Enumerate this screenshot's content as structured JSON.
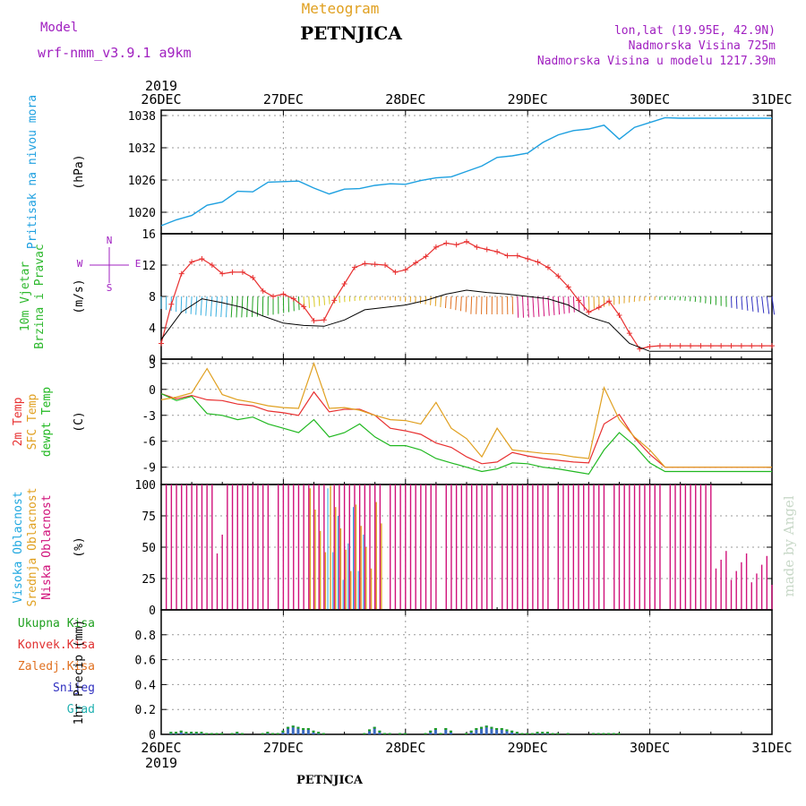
{
  "header": {
    "model_label": "Model",
    "model_name": "wrf-nmm_v3.9.1  a9km",
    "meteogram_label": "Meteogram",
    "station": "PETNJICA",
    "lonlat": "lon,lat (19.95E, 42.9N)",
    "elevation": "Nadmorska Visina 725m",
    "model_elevation": "Nadmorska Visina u modelu 1217.39m",
    "footer_station": "PETNJICA",
    "made_by": "made by Angel"
  },
  "colors": {
    "pressure": "#1ea0e0",
    "wind_label": "#2db82d",
    "wind_speed": "#e83030",
    "temp2m": "#e83030",
    "sfc": "#e0a020",
    "dewpt": "#20b820",
    "visoka": "#20a8e0",
    "srednja": "#e0a020",
    "niska": "#d0107a",
    "ukupna": "#20a020",
    "konvek": "#e03030",
    "zaledj": "#e07020",
    "snijeg": "#3030c0",
    "grad": "#20b0b0",
    "compass": "#a020c0"
  },
  "x_axis": {
    "top_year": "2019",
    "bottom_year": "2019",
    "ticks": [
      "26DEC",
      "27DEC",
      "28DEC",
      "29DEC",
      "30DEC",
      "31DEC"
    ]
  },
  "compass": {
    "n": "N",
    "s": "S",
    "e": "E",
    "w": "W"
  },
  "chart_data": [
    {
      "type": "line",
      "ylabel_lines": [
        "Pritisak na nivou mora"
      ],
      "unit": "(hPa)",
      "ylim": [
        1016,
        1039
      ],
      "yticks": [
        "1038",
        "1032",
        "1026",
        "1020"
      ],
      "series": [
        {
          "x": [
            0,
            3,
            6,
            9,
            12,
            15,
            18,
            21,
            24,
            27,
            30,
            33,
            36,
            39,
            42,
            45,
            48,
            51,
            54,
            57,
            60,
            63,
            66,
            69,
            72,
            75,
            78,
            81,
            84,
            87,
            90,
            93,
            96,
            99,
            102,
            105,
            108,
            111,
            114,
            117,
            120
          ],
          "values": [
            1017.5,
            1018.6,
            1019.4,
            1021.3,
            1021.9,
            1023.9,
            1023.8,
            1025.6,
            1025.7,
            1025.8,
            1024.5,
            1023.4,
            1024.3,
            1024.4,
            1025.0,
            1025.3,
            1025.2,
            1025.9,
            1026.4,
            1026.6,
            1027.6,
            1028.6,
            1030.2,
            1030.5,
            1031.0,
            1033.0,
            1034.4,
            1035.2,
            1035.5,
            1036.2,
            1033.6,
            1035.8,
            1036.7,
            1037.6,
            1037.5,
            1037.5,
            1037.5,
            1037.5,
            1037.5,
            1037.5,
            1037.5
          ]
        }
      ]
    },
    {
      "type": "line",
      "ylabel_lines": [
        "10m Vjetar",
        "Brzina i Pravac"
      ],
      "unit": "(m/s)",
      "ylim": [
        0,
        16
      ],
      "yticks": [
        "16",
        "12",
        "8",
        "4",
        "0"
      ],
      "series": [
        {
          "x": [
            0,
            2,
            4,
            6,
            8,
            10,
            12,
            14,
            16,
            18,
            20,
            22,
            24,
            26,
            28,
            30,
            32,
            34,
            36,
            38,
            40,
            42,
            44,
            46,
            48,
            50,
            52,
            54,
            56,
            58,
            60,
            62,
            64,
            66,
            68,
            70,
            72,
            74,
            76,
            78,
            80,
            82,
            84,
            86,
            88,
            90,
            92,
            94,
            96,
            98,
            100,
            102,
            104,
            106,
            108,
            110,
            112,
            114,
            116,
            118,
            120
          ],
          "values": [
            2.0,
            7.0,
            10.9,
            12.4,
            12.8,
            12.0,
            10.9,
            11.1,
            11.1,
            10.4,
            8.7,
            8.0,
            8.3,
            7.7,
            6.7,
            4.9,
            5.0,
            7.5,
            9.6,
            11.7,
            12.2,
            12.1,
            12.0,
            11.1,
            11.4,
            12.3,
            13.1,
            14.3,
            14.8,
            14.6,
            15.0,
            14.3,
            14.0,
            13.7,
            13.2,
            13.2,
            12.8,
            12.4,
            11.7,
            10.6,
            9.2,
            7.5,
            6.0,
            6.6,
            7.4,
            5.6,
            3.3,
            1.3,
            1.6,
            1.7,
            1.7,
            1.7,
            1.7,
            1.7,
            1.7,
            1.7,
            1.7,
            1.7,
            1.7,
            1.7,
            1.7
          ]
        },
        {
          "x": [
            0,
            4,
            8,
            12,
            16,
            20,
            24,
            28,
            32,
            36,
            40,
            44,
            48,
            52,
            56,
            60,
            64,
            68,
            72,
            76,
            80,
            84,
            88,
            92,
            96,
            100,
            104,
            108,
            112,
            116,
            120
          ],
          "values": [
            2.5,
            6.0,
            7.7,
            7.2,
            6.6,
            5.5,
            4.6,
            4.3,
            4.2,
            5.0,
            6.3,
            6.6,
            6.9,
            7.5,
            8.3,
            8.8,
            8.5,
            8.3,
            8.0,
            7.7,
            6.9,
            5.4,
            4.6,
            2.0,
            1.0,
            1.0,
            1.0,
            1.0,
            1.0,
            1.0,
            1.0
          ]
        }
      ]
    },
    {
      "type": "line",
      "ylabel_lines": [
        "2m Temp",
        "SFC Temp",
        "dewpt Temp"
      ],
      "unit": "(C)",
      "ylim": [
        -11,
        3.5
      ],
      "yticks": [
        "3",
        "0",
        "-3",
        "-6",
        "-9"
      ],
      "series": [
        {
          "x": [
            0,
            3,
            6,
            9,
            12,
            15,
            18,
            21,
            24,
            27,
            30,
            33,
            36,
            39,
            42,
            45,
            48,
            51,
            54,
            57,
            60,
            63,
            66,
            69,
            72,
            75,
            78,
            81,
            84,
            87,
            90,
            93,
            96,
            99,
            102,
            105,
            108,
            111,
            114,
            117,
            120
          ],
          "values": [
            -0.5,
            -1.1,
            -0.7,
            -1.2,
            -1.3,
            -1.7,
            -1.9,
            -2.5,
            -2.7,
            -3.0,
            -0.3,
            -2.6,
            -2.3,
            -2.3,
            -3.0,
            -4.5,
            -4.8,
            -5.2,
            -6.2,
            -6.7,
            -7.8,
            -8.6,
            -8.4,
            -7.3,
            -7.7,
            -8.0,
            -8.2,
            -8.4,
            -8.5,
            -4.0,
            -2.9,
            -5.6,
            -7.5,
            -9.0,
            -9.0,
            -9.0,
            -9.0,
            -9.0,
            -9.0,
            -9.0,
            -9.0
          ]
        },
        {
          "x": [
            0,
            3,
            6,
            9,
            12,
            15,
            18,
            21,
            24,
            27,
            30,
            33,
            36,
            39,
            42,
            45,
            48,
            51,
            54,
            57,
            60,
            63,
            66,
            69,
            72,
            75,
            78,
            81,
            84,
            87,
            90,
            93,
            96,
            99,
            102,
            105,
            108,
            111,
            114,
            117,
            120
          ],
          "values": [
            -0.5,
            -1.3,
            -0.8,
            -2.8,
            -3.0,
            -3.5,
            -3.2,
            -4.0,
            -4.5,
            -5.0,
            -3.5,
            -5.5,
            -5.0,
            -4.0,
            -5.5,
            -6.5,
            -6.5,
            -7.0,
            -8.0,
            -8.5,
            -9.0,
            -9.5,
            -9.2,
            -8.5,
            -8.6,
            -9.0,
            -9.2,
            -9.5,
            -9.8,
            -7.0,
            -5.0,
            -6.5,
            -8.5,
            -9.5,
            -9.5,
            -9.5,
            -9.5,
            -9.5,
            -9.5,
            -9.5,
            -9.5
          ]
        },
        {
          "x": [
            0,
            3,
            6,
            9,
            12,
            15,
            18,
            21,
            24,
            27,
            30,
            33,
            36,
            39,
            42,
            45,
            48,
            51,
            54,
            57,
            60,
            63,
            66,
            69,
            72,
            75,
            78,
            81,
            84,
            87,
            90,
            93,
            96,
            99,
            102,
            105,
            108,
            111,
            114,
            117,
            120
          ],
          "values": [
            -1.2,
            -0.9,
            -0.4,
            2.4,
            -0.6,
            -1.2,
            -1.5,
            -1.9,
            -2.1,
            -2.2,
            3.0,
            -2.2,
            -2.1,
            -2.4,
            -3.0,
            -3.5,
            -3.6,
            -4.0,
            -1.5,
            -4.5,
            -5.7,
            -7.8,
            -4.5,
            -7.0,
            -7.2,
            -7.4,
            -7.5,
            -7.8,
            -8.0,
            0.2,
            -3.5,
            -5.5,
            -7.0,
            -9.0,
            -9.0,
            -9.0,
            -9.0,
            -9.0,
            -9.0,
            -9.0,
            -9.0
          ]
        }
      ]
    },
    {
      "type": "bar",
      "ylabel_lines": [
        "Visoka Oblacnost",
        "Srednja Oblacnost",
        "Niska Oblacnost"
      ],
      "unit": "(%)",
      "ylim": [
        0,
        100
      ],
      "yticks": [
        "100",
        "75",
        "50",
        "25",
        "0"
      ]
    },
    {
      "type": "bar",
      "ylabel_lines": [
        "Ukupna Kisa",
        "Konvek.Kisa",
        "Zaledj.Kisa",
        "Snijeg",
        "Grad"
      ],
      "unit": "1hr Precip (mm)",
      "ylim": [
        0,
        1.0
      ],
      "yticks": [
        "0.8",
        "0.6",
        "0.4",
        "0.2",
        "0"
      ],
      "series": [
        {
          "x": [
            2,
            3,
            4,
            5,
            6,
            7,
            8,
            9,
            10,
            11,
            12,
            14,
            15,
            16,
            20,
            21,
            22,
            23,
            24,
            25,
            26,
            27,
            28,
            29,
            30,
            31,
            32,
            40,
            41,
            42,
            43,
            44,
            45,
            47,
            48,
            52,
            53,
            54,
            55,
            56,
            57,
            60,
            61,
            62,
            63,
            64,
            65,
            66,
            67,
            68,
            69,
            70,
            71,
            72,
            73,
            74,
            75,
            76,
            77,
            78,
            80,
            85,
            86,
            87,
            88,
            89,
            90
          ],
          "values": [
            0.02,
            0.02,
            0.03,
            0.02,
            0.02,
            0.02,
            0.02,
            0.01,
            0.01,
            0.01,
            0.01,
            0.01,
            0.02,
            0.01,
            0.01,
            0.02,
            0.01,
            0.01,
            0.03,
            0.06,
            0.07,
            0.06,
            0.05,
            0.05,
            0.03,
            0.02,
            0.01,
            0.01,
            0.04,
            0.06,
            0.03,
            0.01,
            0.01,
            0.01,
            0.01,
            0.01,
            0.03,
            0.05,
            0.01,
            0.05,
            0.03,
            0.01,
            0.03,
            0.05,
            0.06,
            0.07,
            0.06,
            0.05,
            0.05,
            0.04,
            0.03,
            0.02,
            0.01,
            0.01,
            0.01,
            0.02,
            0.02,
            0.02,
            0.01,
            0.01,
            0.01,
            0.01,
            0.01,
            0.01,
            0.01,
            0.01,
            0.01
          ]
        }
      ]
    }
  ]
}
